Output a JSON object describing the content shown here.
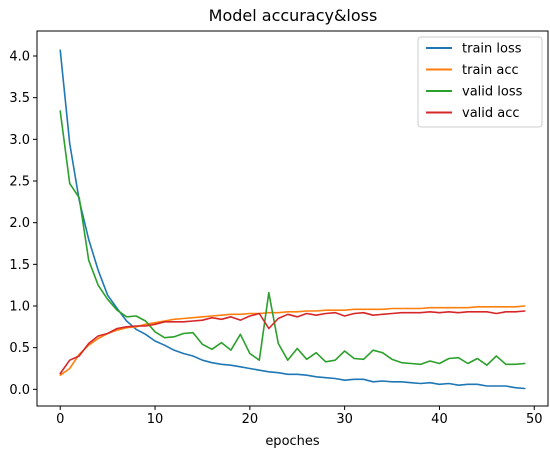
{
  "chart_data": {
    "type": "line",
    "title": "Model accuracy&loss",
    "xlabel": "epoches",
    "ylabel": "",
    "xlim": [
      -2.45,
      51.45
    ],
    "ylim": [
      -0.2,
      4.3
    ],
    "xticks": [
      0,
      10,
      20,
      30,
      40,
      50
    ],
    "yticks": [
      0.0,
      0.5,
      1.0,
      1.5,
      2.0,
      2.5,
      3.0,
      3.5,
      4.0
    ],
    "grid": false,
    "legend_position": "top-right",
    "x": [
      0,
      1,
      2,
      3,
      4,
      5,
      6,
      7,
      8,
      9,
      10,
      11,
      12,
      13,
      14,
      15,
      16,
      17,
      18,
      19,
      20,
      21,
      22,
      23,
      24,
      25,
      26,
      27,
      28,
      29,
      30,
      31,
      32,
      33,
      34,
      35,
      36,
      37,
      38,
      39,
      40,
      41,
      42,
      43,
      44,
      45,
      46,
      47,
      48,
      49
    ],
    "series": [
      {
        "name": "train loss",
        "color": "#1f77b4",
        "values": [
          4.07,
          2.95,
          2.27,
          1.8,
          1.43,
          1.13,
          0.97,
          0.82,
          0.72,
          0.66,
          0.58,
          0.53,
          0.47,
          0.43,
          0.4,
          0.35,
          0.32,
          0.3,
          0.29,
          0.27,
          0.25,
          0.23,
          0.21,
          0.2,
          0.18,
          0.18,
          0.17,
          0.15,
          0.14,
          0.13,
          0.11,
          0.12,
          0.12,
          0.09,
          0.1,
          0.09,
          0.09,
          0.08,
          0.07,
          0.08,
          0.06,
          0.07,
          0.05,
          0.06,
          0.06,
          0.04,
          0.04,
          0.04,
          0.02,
          0.01
        ]
      },
      {
        "name": "train acc",
        "color": "#ff7f0e",
        "values": [
          0.17,
          0.25,
          0.42,
          0.53,
          0.61,
          0.67,
          0.71,
          0.74,
          0.75,
          0.78,
          0.8,
          0.82,
          0.84,
          0.85,
          0.86,
          0.87,
          0.88,
          0.89,
          0.9,
          0.9,
          0.91,
          0.91,
          0.92,
          0.92,
          0.93,
          0.93,
          0.94,
          0.94,
          0.95,
          0.95,
          0.95,
          0.96,
          0.96,
          0.96,
          0.96,
          0.97,
          0.97,
          0.97,
          0.97,
          0.98,
          0.98,
          0.98,
          0.98,
          0.98,
          0.99,
          0.99,
          0.99,
          0.99,
          0.99,
          1.0
        ]
      },
      {
        "name": "valid loss",
        "color": "#2ca02c",
        "values": [
          3.34,
          2.47,
          2.3,
          1.55,
          1.25,
          1.08,
          0.95,
          0.87,
          0.88,
          0.82,
          0.69,
          0.62,
          0.63,
          0.67,
          0.68,
          0.54,
          0.48,
          0.56,
          0.47,
          0.66,
          0.43,
          0.35,
          1.16,
          0.55,
          0.35,
          0.49,
          0.36,
          0.44,
          0.33,
          0.35,
          0.46,
          0.37,
          0.36,
          0.47,
          0.44,
          0.36,
          0.32,
          0.31,
          0.3,
          0.34,
          0.31,
          0.37,
          0.38,
          0.31,
          0.37,
          0.29,
          0.4,
          0.3,
          0.3,
          0.31
        ]
      },
      {
        "name": "valid acc",
        "color": "#d62728",
        "values": [
          0.19,
          0.35,
          0.4,
          0.55,
          0.64,
          0.67,
          0.73,
          0.75,
          0.76,
          0.76,
          0.78,
          0.81,
          0.81,
          0.81,
          0.82,
          0.83,
          0.86,
          0.84,
          0.87,
          0.83,
          0.88,
          0.91,
          0.73,
          0.85,
          0.9,
          0.87,
          0.91,
          0.89,
          0.91,
          0.92,
          0.88,
          0.91,
          0.92,
          0.89,
          0.9,
          0.91,
          0.92,
          0.92,
          0.92,
          0.93,
          0.92,
          0.93,
          0.92,
          0.93,
          0.93,
          0.93,
          0.91,
          0.93,
          0.93,
          0.94
        ]
      }
    ]
  }
}
